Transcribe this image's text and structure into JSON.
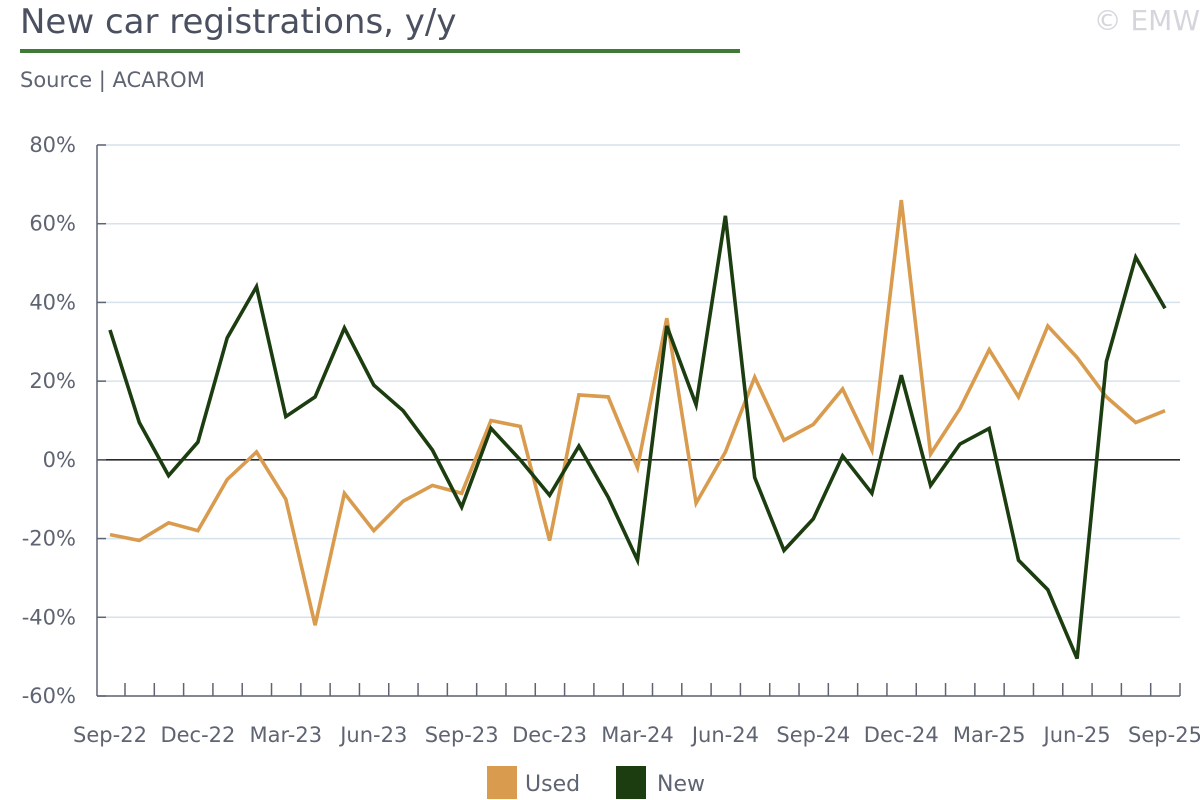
{
  "header": {
    "title": "New car registrations, y/y",
    "subtitle": "Source | ACAROM",
    "watermark": "© EMW"
  },
  "chart_data": {
    "type": "line",
    "y_ticks": [
      -60,
      -40,
      -20,
      0,
      20,
      40,
      60,
      80
    ],
    "y_tick_labels": [
      "-60%",
      "-40%",
      "-20%",
      "0%",
      "20%",
      "40%",
      "60%",
      "80%"
    ],
    "ylim": [
      -60,
      80
    ],
    "x_tick_labels": [
      "Sep-22",
      "Dec-22",
      "Mar-23",
      "Jun-23",
      "Sep-23",
      "Dec-23",
      "Mar-24",
      "Jun-24",
      "Sep-24",
      "Dec-24",
      "Mar-25",
      "Jun-25",
      "Sep-25"
    ],
    "x": [
      "Sep-22",
      "Oct-22",
      "Nov-22",
      "Dec-22",
      "Jan-23",
      "Feb-23",
      "Mar-23",
      "Apr-23",
      "May-23",
      "Jun-23",
      "Jul-23",
      "Aug-23",
      "Sep-23",
      "Oct-23",
      "Nov-23",
      "Dec-23",
      "Jan-24",
      "Feb-24",
      "Mar-24",
      "Apr-24",
      "May-24",
      "Jun-24",
      "Jul-24",
      "Aug-24",
      "Sep-24",
      "Oct-24",
      "Nov-24",
      "Dec-24",
      "Jan-25",
      "Feb-25",
      "Mar-25",
      "Apr-25",
      "May-25",
      "Jun-25",
      "Jul-25",
      "Aug-25",
      "Sep-25"
    ],
    "grid": true,
    "legend_position": "bottom-center",
    "series": [
      {
        "name": "Used",
        "color": "#d99b4e",
        "values": [
          -19,
          -20.5,
          -16,
          -18,
          -5,
          2,
          -10,
          -42,
          -8.5,
          -18,
          -10.5,
          -6.5,
          -8.5,
          10,
          8.5,
          -20.5,
          16.5,
          16,
          -2,
          36,
          -11,
          2,
          21,
          5,
          9,
          18,
          2.5,
          66,
          1.5,
          13,
          28,
          16,
          34,
          26,
          16,
          9.5,
          12.5
        ]
      },
      {
        "name": "New",
        "color": "#1b3d10",
        "values": [
          33,
          9.5,
          -4,
          4.5,
          31,
          44,
          11,
          16,
          33.5,
          19,
          12.5,
          2.5,
          -12,
          8,
          0,
          -9,
          3.5,
          -9.5,
          -25.5,
          34,
          14,
          62,
          -4.5,
          -23,
          -15,
          1,
          -8.5,
          21.5,
          -6.5,
          4,
          8,
          -25.5,
          -33,
          -50.5,
          25,
          51.5,
          38.5
        ]
      }
    ]
  }
}
